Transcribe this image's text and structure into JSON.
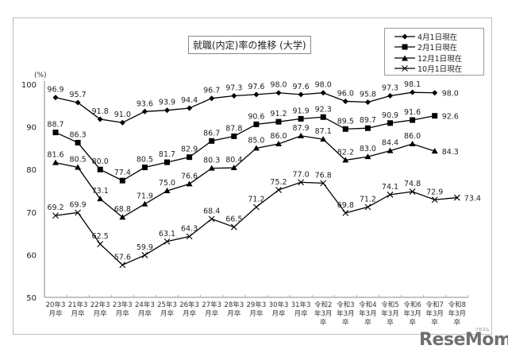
{
  "chart_data": {
    "type": "line",
    "title": "就職(内定)率の推移 (大学)",
    "ylabel": "(%)",
    "xlabel": "",
    "ylim": [
      50,
      100
    ],
    "yticks": [
      50,
      60,
      70,
      80,
      90,
      100
    ],
    "grid": false,
    "legend_position": "top-right",
    "categories": [
      "20年3月卒",
      "21年3月卒",
      "22年3月卒",
      "23年3月卒",
      "24年3月卒",
      "25年3月卒",
      "26年3月卒",
      "27年3月卒",
      "28年3月卒",
      "29年3月卒",
      "30年3月卒",
      "31年3月卒",
      "令和2年3月卒",
      "令和3年3月卒",
      "令和4年3月卒",
      "令和5年3月卒",
      "令和6年3月卒",
      "令和7年3月卒",
      "令和8年3月卒"
    ],
    "category_lines": [
      [
        "20年3",
        "月卒"
      ],
      [
        "21年3",
        "月卒"
      ],
      [
        "22年3",
        "月卒"
      ],
      [
        "23年3",
        "月卒"
      ],
      [
        "24年3",
        "月卒"
      ],
      [
        "25年3",
        "月卒"
      ],
      [
        "26年3",
        "月卒"
      ],
      [
        "27年3",
        "月卒"
      ],
      [
        "28年3",
        "月卒"
      ],
      [
        "29年3",
        "月卒"
      ],
      [
        "30年3",
        "月卒"
      ],
      [
        "31年3",
        "月卒"
      ],
      [
        "令和2",
        "年3月",
        "卒"
      ],
      [
        "令和3",
        "年3月",
        "卒"
      ],
      [
        "令和4",
        "年3月",
        "卒"
      ],
      [
        "令和5",
        "年3月",
        "卒"
      ],
      [
        "令和6",
        "年3月",
        "卒"
      ],
      [
        "令和7",
        "年3月",
        "卒"
      ],
      [
        "令和8",
        "年3月",
        "卒"
      ]
    ],
    "series": [
      {
        "name": "4月1日現在",
        "marker": "diamond",
        "values": [
          96.9,
          95.7,
          91.8,
          91.0,
          93.6,
          93.9,
          94.4,
          96.7,
          97.3,
          97.6,
          98.0,
          97.6,
          98.0,
          96.0,
          95.8,
          97.3,
          98.1,
          98.0,
          null
        ]
      },
      {
        "name": "2月1日現在",
        "marker": "square",
        "values": [
          88.7,
          86.3,
          80.0,
          77.4,
          80.5,
          81.7,
          82.9,
          86.7,
          87.8,
          90.6,
          91.2,
          91.9,
          92.3,
          89.5,
          89.7,
          90.9,
          91.6,
          92.6,
          null
        ]
      },
      {
        "name": "12月1日現在",
        "marker": "triangle",
        "values": [
          81.6,
          80.5,
          73.1,
          68.8,
          71.9,
          75.0,
          76.6,
          80.3,
          80.4,
          85.0,
          86.0,
          87.9,
          87.1,
          82.2,
          83.0,
          84.4,
          86.0,
          84.3,
          null
        ]
      },
      {
        "name": "10月1日現在",
        "marker": "x",
        "values": [
          69.2,
          69.9,
          62.5,
          57.6,
          59.9,
          63.1,
          64.3,
          68.4,
          66.5,
          71.2,
          75.2,
          77.0,
          76.8,
          69.8,
          71.2,
          74.1,
          74.8,
          72.9,
          73.4
        ]
      }
    ]
  },
  "title": "就職(内定)率の推移 (大学)",
  "unit": "(%)",
  "legend": [
    "4月1日現在",
    "2月1日現在",
    "12月1日現在",
    "10月1日現在"
  ],
  "watermark": "ReseMom",
  "watermark_ruby": "リセマム",
  "colors": {
    "line": "#000000",
    "axis": "#b0b0b0",
    "frame": "#bdbdbd",
    "text": "#222222"
  }
}
